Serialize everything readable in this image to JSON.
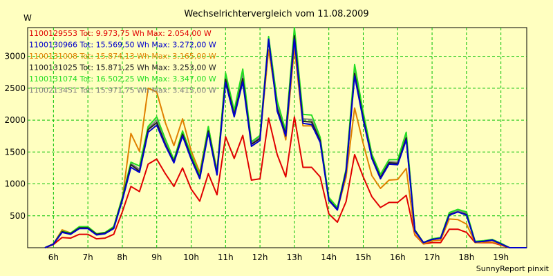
{
  "chart_data": {
    "type": "line",
    "title": "Wechselrichtervergleich vom 11.08.2009",
    "ylabel": "W",
    "xlabel": "",
    "footer": "SunnyReport pinxit",
    "ylim": [
      0,
      3450
    ],
    "xlim": [
      5.25,
      19.75
    ],
    "yticks": [
      500,
      1000,
      1500,
      2000,
      2500,
      3000
    ],
    "xticks": [
      6,
      7,
      8,
      9,
      10,
      11,
      12,
      13,
      14,
      15,
      16,
      17,
      18,
      19
    ],
    "xtick_labels": [
      "6h",
      "7h",
      "8h",
      "9h",
      "10h",
      "11h",
      "12h",
      "13h",
      "14h",
      "15h",
      "16h",
      "17h",
      "18h",
      "19h"
    ],
    "grid": true,
    "legend_position": "top-left",
    "x": [
      5.75,
      6.0,
      6.25,
      6.5,
      6.75,
      7.0,
      7.25,
      7.5,
      7.75,
      8.0,
      8.25,
      8.5,
      8.75,
      9.0,
      9.25,
      9.5,
      9.75,
      10.0,
      10.25,
      10.5,
      10.75,
      11.0,
      11.25,
      11.5,
      11.75,
      12.0,
      12.25,
      12.5,
      12.75,
      13.0,
      13.25,
      13.5,
      13.75,
      14.0,
      14.25,
      14.5,
      14.75,
      15.0,
      15.25,
      15.5,
      15.75,
      16.0,
      16.25,
      16.5,
      16.75,
      17.0,
      17.25,
      17.5,
      17.75,
      18.0,
      18.25,
      18.5,
      18.75,
      19.0,
      19.25,
      19.5,
      19.75
    ],
    "series": [
      {
        "name": "1100129553",
        "label": "1100129553 Tot: 9.973,75 Wh Max: 2.054,00 W",
        "color": "#e00000",
        "values": [
          0,
          50,
          160,
          150,
          210,
          210,
          140,
          150,
          210,
          560,
          960,
          880,
          1310,
          1390,
          1160,
          960,
          1250,
          920,
          730,
          1160,
          830,
          1740,
          1400,
          1760,
          1060,
          1080,
          2030,
          1460,
          1110,
          2050,
          1260,
          1260,
          1110,
          530,
          400,
          720,
          1460,
          1110,
          800,
          630,
          710,
          710,
          820,
          200,
          60,
          80,
          80,
          290,
          290,
          240,
          80,
          80,
          80,
          40,
          0,
          0,
          0
        ],
        "skip_legend": false
      },
      {
        "name": "1100130966",
        "label": "1100130966 Tot: 15.569,50 Wh Max: 3.272,00 W",
        "color": "#0000cc",
        "values": [
          0,
          55,
          240,
          210,
          300,
          300,
          200,
          220,
          300,
          740,
          1260,
          1180,
          1810,
          1920,
          1600,
          1330,
          1750,
          1390,
          1080,
          1800,
          1140,
          2590,
          2050,
          2600,
          1590,
          1680,
          3270,
          2140,
          1750,
          3270,
          1950,
          1930,
          1650,
          740,
          590,
          1180,
          2690,
          2000,
          1400,
          1080,
          1310,
          1300,
          1690,
          260,
          80,
          130,
          150,
          510,
          560,
          510,
          90,
          100,
          120,
          60,
          0,
          0,
          0
        ],
        "skip_legend": false
      },
      {
        "name": "1100131008",
        "label": "1100131008 Tot: 15.874,13 Wh Max: 3.165,00 W",
        "color": "#e08000",
        "values": [
          0,
          60,
          280,
          230,
          310,
          310,
          220,
          230,
          310,
          760,
          1790,
          1510,
          2500,
          2440,
          1960,
          1600,
          2020,
          1520,
          1180,
          1890,
          1210,
          2680,
          2120,
          2700,
          1640,
          1720,
          3100,
          2240,
          1690,
          3140,
          1910,
          1910,
          1700,
          760,
          600,
          1100,
          2190,
          1630,
          1130,
          930,
          1060,
          1070,
          1240,
          210,
          60,
          110,
          120,
          450,
          440,
          370,
          80,
          90,
          90,
          50,
          0,
          0,
          0
        ],
        "skip_legend": false
      },
      {
        "name": "1100131025",
        "label": "1100131025 Tot: 15.871,25 Wh Max: 3.253,00 W",
        "color": "#202020",
        "values": [
          0,
          60,
          250,
          220,
          310,
          310,
          210,
          230,
          310,
          760,
          1300,
          1200,
          1850,
          1960,
          1620,
          1350,
          1780,
          1410,
          1100,
          1830,
          1160,
          2640,
          2080,
          2650,
          1620,
          1710,
          3260,
          2180,
          1780,
          3320,
          1980,
          1970,
          1680,
          750,
          600,
          1200,
          2730,
          2030,
          1420,
          1100,
          1330,
          1320,
          1720,
          270,
          80,
          130,
          150,
          520,
          560,
          520,
          90,
          100,
          120,
          60,
          0,
          0,
          0
        ],
        "skip_legend": false
      },
      {
        "name": "1100131074",
        "label": "1100131074 Tot: 16.502,25 Wh Max: 3.347,00 W",
        "color": "#22dd22",
        "values": [
          0,
          60,
          260,
          230,
          330,
          330,
          220,
          240,
          330,
          790,
          1340,
          1280,
          1900,
          2050,
          1700,
          1380,
          1830,
          1460,
          1130,
          1900,
          1190,
          2740,
          2150,
          2800,
          1660,
          1760,
          3310,
          2300,
          1830,
          3450,
          2090,
          2080,
          1730,
          790,
          630,
          1230,
          2870,
          2120,
          1470,
          1150,
          1380,
          1380,
          1810,
          280,
          80,
          140,
          160,
          550,
          600,
          560,
          100,
          110,
          130,
          70,
          0,
          0,
          0
        ],
        "skip_legend": false
      },
      {
        "name": "1100213451",
        "label": "1100213451 Tot: 15.971,75 Wh Max: 3.415,00 W",
        "color": "#808080",
        "values": [
          0,
          60,
          255,
          225,
          320,
          320,
          215,
          235,
          320,
          770,
          1320,
          1230,
          1870,
          2000,
          1660,
          1360,
          1800,
          1430,
          1110,
          1860,
          1170,
          2690,
          2110,
          2720,
          1640,
          1730,
          3280,
          2230,
          1800,
          3415,
          2020,
          2010,
          1700,
          760,
          610,
          1210,
          2780,
          2060,
          1440,
          1120,
          1350,
          1340,
          1760,
          270,
          80,
          135,
          155,
          530,
          580,
          540,
          95,
          105,
          125,
          65,
          0,
          0,
          0
        ],
        "skip_legend": true
      }
    ],
    "draw_order": [
      "1100129553",
      "1100131008",
      "1100213451",
      "1100131074",
      "1100131025",
      "1100130966"
    ]
  }
}
